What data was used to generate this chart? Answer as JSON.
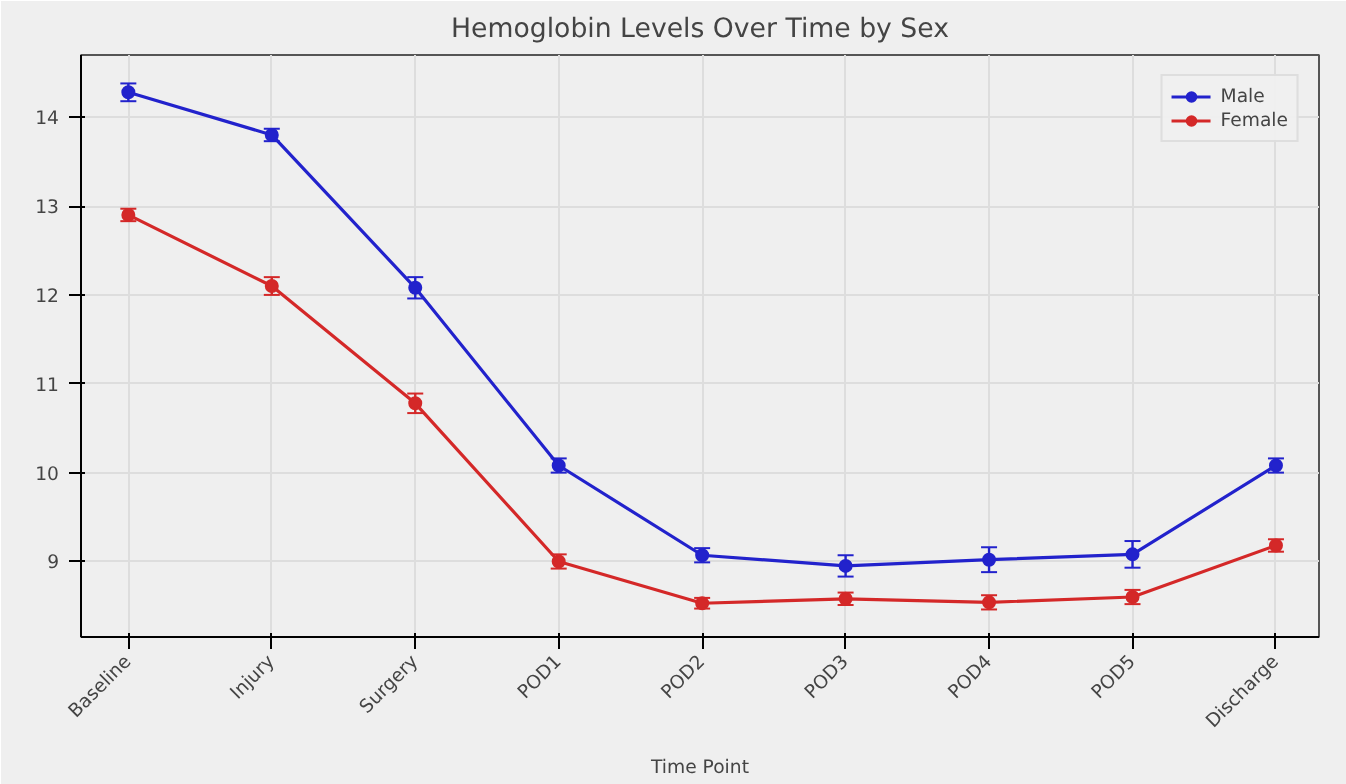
{
  "chart_data": {
    "type": "line",
    "title": "Hemoglobin Levels Over Time by Sex",
    "xlabel": "Time Point",
    "categories": [
      "Baseline",
      "Injury",
      "Surgery",
      "POD1",
      "POD2",
      "POD3",
      "POD4",
      "POD5",
      "Discharge"
    ],
    "series": [
      {
        "name": "Male",
        "color": "#2222cc",
        "values": [
          14.28,
          13.8,
          12.08,
          10.08,
          9.07,
          8.95,
          9.02,
          9.08,
          10.08
        ],
        "errors": [
          0.1,
          0.07,
          0.12,
          0.08,
          0.08,
          0.12,
          0.14,
          0.15,
          0.08
        ]
      },
      {
        "name": "Female",
        "color": "#d42828",
        "values": [
          12.9,
          12.1,
          10.78,
          9.0,
          8.53,
          8.58,
          8.54,
          8.6,
          9.18
        ],
        "errors": [
          0.07,
          0.1,
          0.11,
          0.08,
          0.06,
          0.07,
          0.08,
          0.08,
          0.07
        ]
      }
    ],
    "ylim": [
      8.15,
      14.7
    ],
    "yticks": [
      9,
      10,
      11,
      12,
      13,
      14
    ],
    "grid": true,
    "legend": "top right",
    "marker": "circle",
    "line_style": "solid"
  }
}
